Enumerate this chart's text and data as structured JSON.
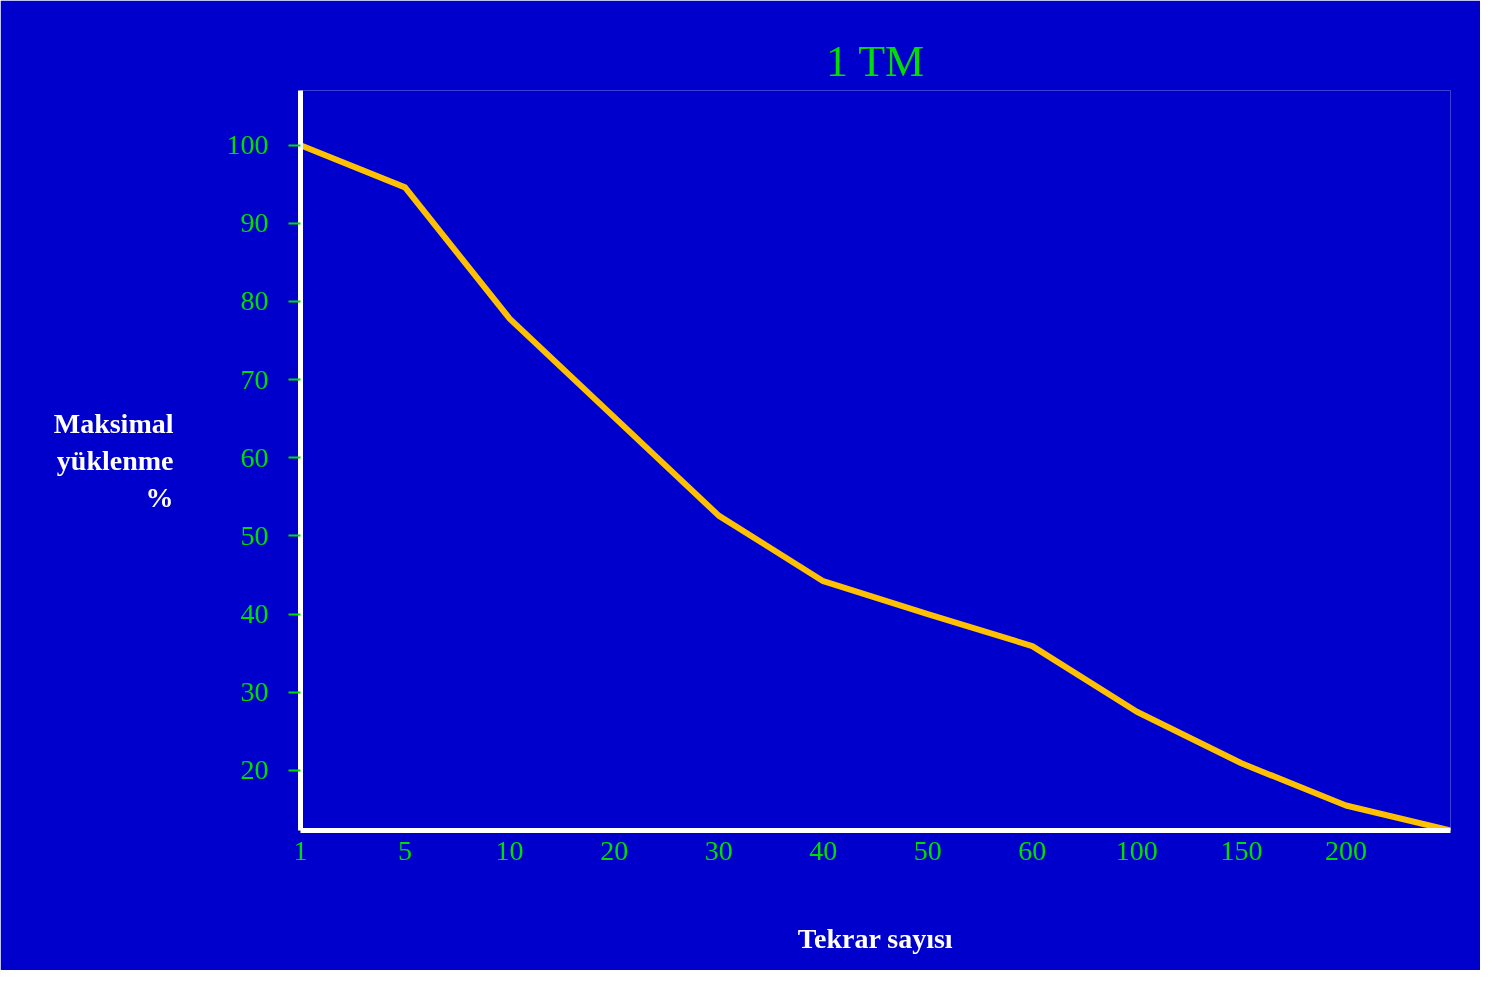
{
  "chart_data": {
    "type": "line",
    "title": "1 TM",
    "xlabel": "Tekrar sayısı",
    "ylabel": "Maksimal yüklenme %",
    "categories": [
      "1",
      "5",
      "10",
      "20",
      "30",
      "40",
      "50",
      "60",
      "100",
      "150",
      "200",
      null
    ],
    "series": [
      {
        "color": "#ffc000",
        "values": [
          100,
          94.6,
          77.8,
          65.2,
          52.6,
          44.2,
          40,
          35.9,
          27.5,
          20.9,
          15.5,
          12.3
        ]
      }
    ],
    "ylim": [
      12.3,
      107
    ],
    "yticks": [
      20,
      30,
      40,
      50,
      60,
      70,
      80,
      90,
      100
    ],
    "grid": false,
    "marker": "none",
    "line_style": "solid"
  }
}
